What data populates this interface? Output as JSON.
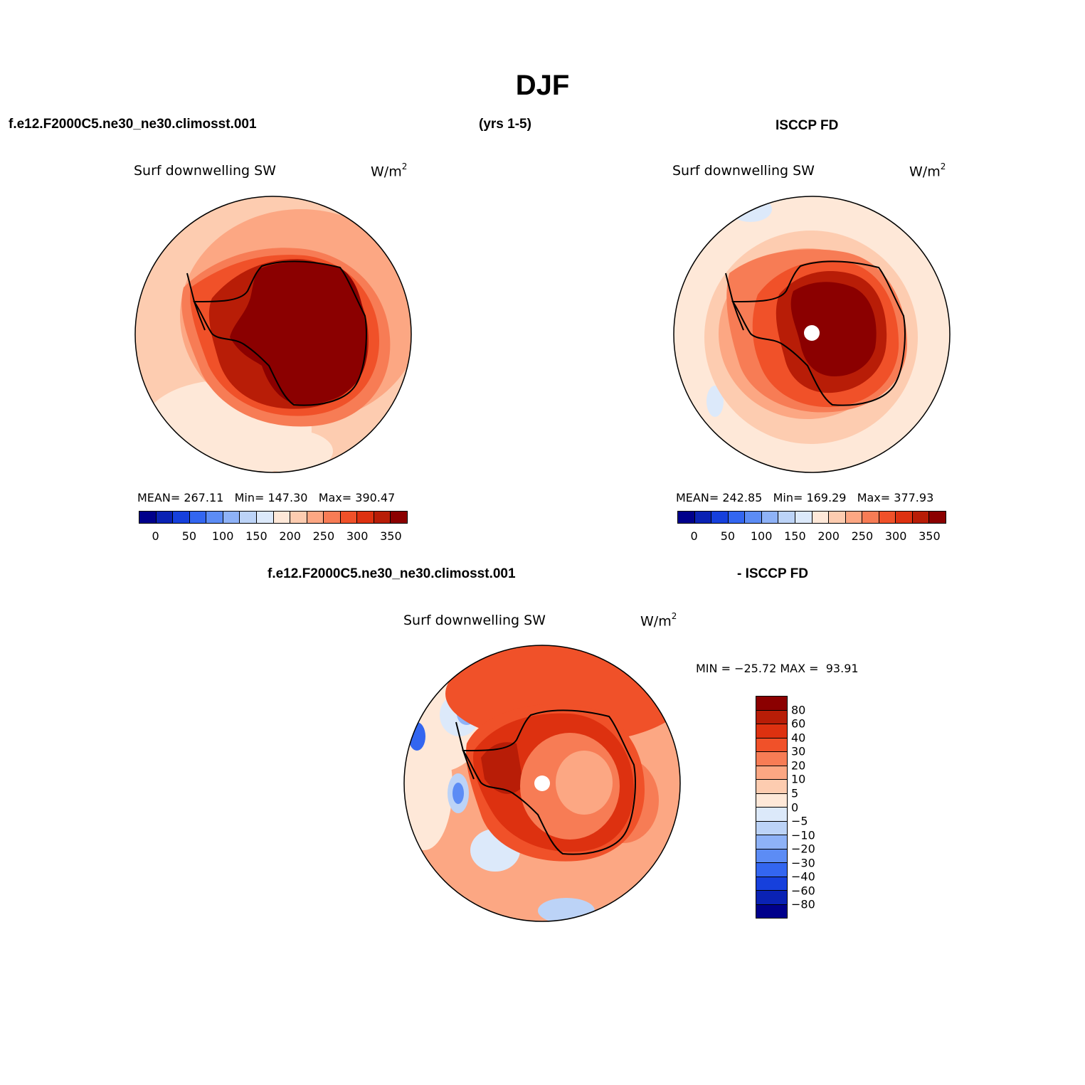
{
  "figure": {
    "title": "DJF",
    "header_left": "f.e12.F2000C5.ne30_ne30.climosst.001",
    "header_mid": "(yrs 1-5)",
    "header_right": "ISCCP FD",
    "diff_header_left": "f.e12.F2000C5.ne30_ne30.climosst.001",
    "diff_header_right": "- ISCCP FD"
  },
  "panels": {
    "model": {
      "title": "Surf downwelling SW",
      "unit_base": "W/m",
      "unit_exp": "2",
      "stats": "MEAN= 267.11   Min= 147.30   Max= 390.47"
    },
    "obs": {
      "title": "Surf downwelling SW",
      "unit_base": "W/m",
      "unit_exp": "2",
      "stats": "MEAN= 242.85   Min= 169.29   Max= 377.93"
    },
    "diff": {
      "title": "Surf downwelling SW",
      "unit_base": "W/m",
      "unit_exp": "2",
      "stats": "MIN = −25.72 MAX =  93.91"
    }
  },
  "colorbars": {
    "abs": {
      "colors": [
        "#00008b",
        "#0a22b4",
        "#1640dc",
        "#3366f0",
        "#5c8cf5",
        "#8eb2f7",
        "#bcd3f7",
        "#dce9fa",
        "#fee8d8",
        "#fdccb0",
        "#fca783",
        "#f77c55",
        "#f05129",
        "#dd3110",
        "#b81d07",
        "#8b0000"
      ],
      "ticks": [
        "0",
        "50",
        "100",
        "150",
        "200",
        "250",
        "300",
        "350"
      ]
    },
    "diff": {
      "colors": [
        "#8b0000",
        "#b81d07",
        "#dd3110",
        "#f05129",
        "#f77c55",
        "#fca783",
        "#fdccb0",
        "#fee8d8",
        "#dce9fa",
        "#bcd3f7",
        "#8eb2f7",
        "#5c8cf5",
        "#3366f0",
        "#1640dc",
        "#0a22b4",
        "#00008b"
      ],
      "ticks": [
        "80",
        "60",
        "40",
        "30",
        "20",
        "10",
        "5",
        "0",
        "−5",
        "−10",
        "−20",
        "−30",
        "−40",
        "−60",
        "−80"
      ]
    }
  },
  "chart_data": {
    "type": "heatmap",
    "variable": "Surf downwelling SW",
    "units": "W/m2",
    "season": "DJF",
    "panels": [
      {
        "name": "f.e12.F2000C5.ne30_ne30.climosst.001",
        "mean": 267.11,
        "min": 147.3,
        "max": 390.47
      },
      {
        "name": "ISCCP FD",
        "mean": 242.85,
        "min": 169.29,
        "max": 377.93
      },
      {
        "name": "f.e12.F2000C5.ne30_ne30.climosst.001 - ISCCP FD",
        "min": -25.72,
        "max": 93.91
      }
    ],
    "abs_levels": [
      0,
      25,
      50,
      75,
      100,
      125,
      150,
      175,
      200,
      225,
      250,
      275,
      300,
      325,
      350
    ],
    "diff_levels": [
      -80,
      -60,
      -40,
      -30,
      -20,
      -10,
      -5,
      0,
      5,
      10,
      20,
      30,
      40,
      60,
      80
    ]
  }
}
